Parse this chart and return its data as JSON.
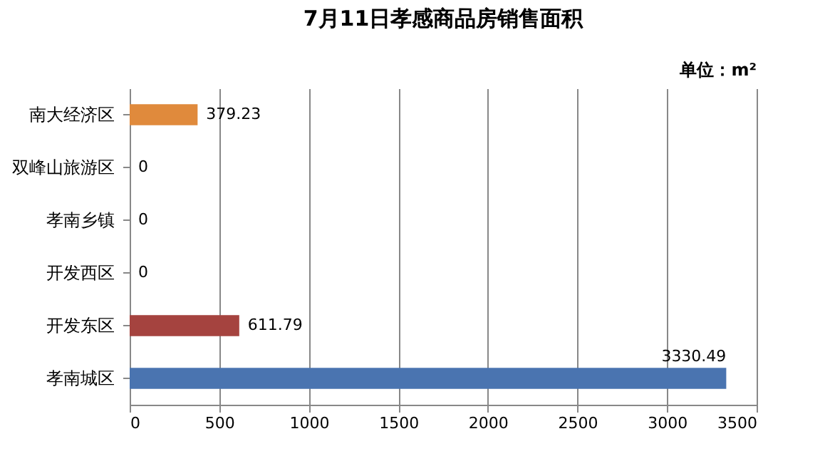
{
  "chart_data": {
    "type": "bar",
    "orientation": "horizontal",
    "title": "7月11日孝感商品房销售面积",
    "annotations": [
      "单位：m²"
    ],
    "categories": [
      "南大经济区",
      "双峰山旅游区",
      "孝南乡镇",
      "开发西区",
      "开发东区",
      "孝南城区"
    ],
    "values": [
      379.23,
      0,
      0,
      0,
      611.79,
      3330.49
    ],
    "colors": [
      "#e08a3c",
      "#e08a3c",
      "#e08a3c",
      "#e08a3c",
      "#a5433f",
      "#4a74b0"
    ],
    "xlim": [
      0,
      3500
    ],
    "xticks": [
      0,
      500,
      1000,
      1500,
      2000,
      2500,
      3000,
      3500
    ],
    "grid": "x",
    "data_labels": true
  }
}
